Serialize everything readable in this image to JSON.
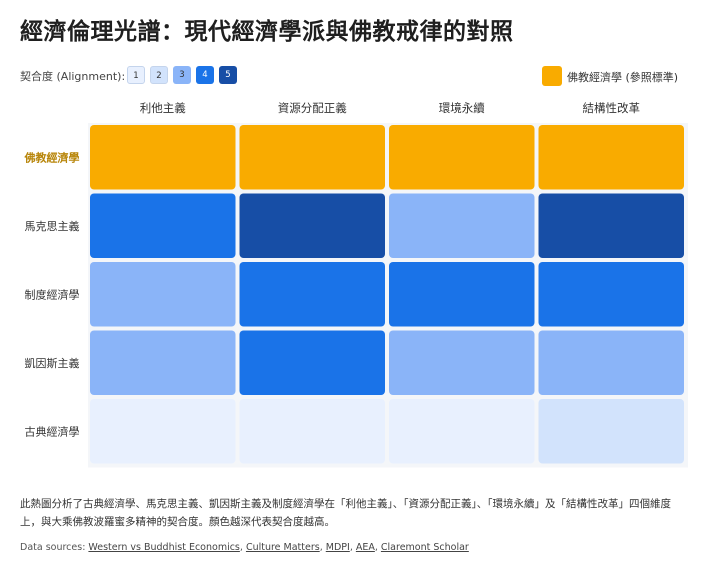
{
  "title": "經濟倫理光譜：現代經濟學派與佛教戒律的對照",
  "scale": {
    "label": "契合度 (Alignment):",
    "levels": [
      "1",
      "2",
      "3",
      "4",
      "5"
    ],
    "colors": [
      "#e8f0fe",
      "#d2e3fc",
      "#8ab4f8",
      "#1a73e8",
      "#174ea6"
    ]
  },
  "reference_legend": {
    "label": "佛教經濟學 (參照標準)",
    "color": "#f9ab00"
  },
  "chart_data": {
    "type": "heatmap",
    "columns": [
      "利他主義",
      "資源分配正義",
      "環境永續",
      "結構性改革"
    ],
    "rows": [
      "佛教經濟學",
      "馬克思主義",
      "制度經濟學",
      "凱因斯主義",
      "古典經濟學"
    ],
    "reference_row": "佛教經濟學",
    "values": [
      [
        null,
        null,
        null,
        null
      ],
      [
        4,
        5,
        3,
        5
      ],
      [
        3,
        4,
        4,
        4
      ],
      [
        3,
        4,
        3,
        3
      ],
      [
        1,
        1,
        1,
        2
      ]
    ]
  },
  "description": "此熱圖分析了古典經濟學、馬克思主義、凱因斯主義及制度經濟學在「利他主義」、「資源分配正義」、「環境永續」及「結構性改革」四個維度上，與大乘佛教波羅蜜多精神的契合度。顏色越深代表契合度越高。",
  "sources": {
    "prefix": "Data sources: ",
    "links": [
      "Western vs Buddhist Economics",
      "Culture Matters",
      "MDPI",
      "AEA",
      "Claremont Scholar"
    ]
  }
}
